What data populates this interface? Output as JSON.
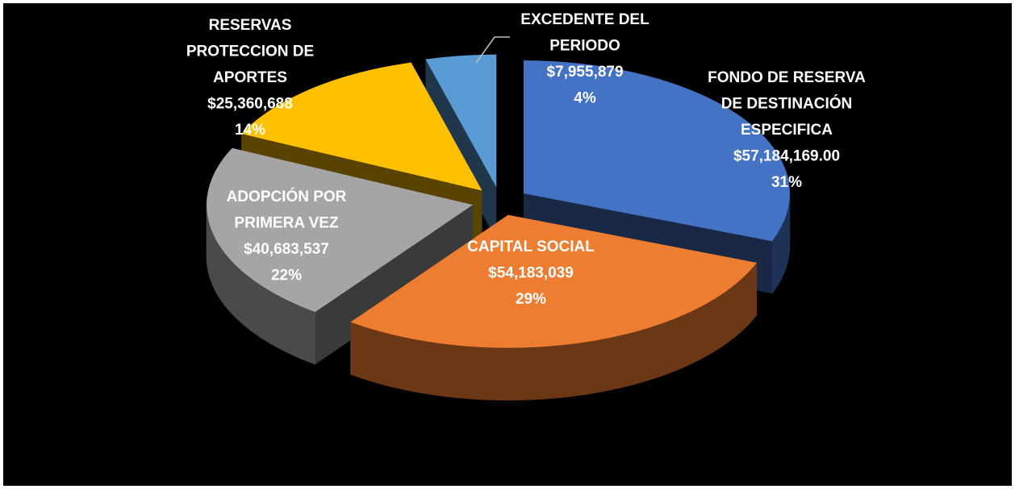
{
  "chart_data": {
    "type": "pie3d",
    "categories": [
      [
        "FONDO DE RESERVA",
        "DE DESTINACIÓN",
        "ESPECIFICA"
      ],
      [
        "CAPITAL SOCIAL"
      ],
      [
        "ADOPCIÓN POR",
        "PRIMERA VEZ"
      ],
      [
        "RESERVAS",
        "PROTECCION DE",
        "APORTES"
      ],
      [
        "EXCEDENTE DEL",
        "PERIODO"
      ]
    ],
    "values": [
      57184169,
      54183039,
      40683537,
      25360688,
      7955879
    ],
    "value_labels": [
      "$57,184,169.00",
      "$54,183,039",
      "$40,683,537",
      "$25,360,688",
      "$7,955,879"
    ],
    "percentages": [
      31,
      29,
      22,
      14,
      4
    ],
    "percentage_labels": [
      "31%",
      "29%",
      "22%",
      "14%",
      "4%"
    ],
    "colors": [
      "#4472c4",
      "#ed7d31",
      "#a5a5a5",
      "#ffc000",
      "#5b9bd5"
    ]
  }
}
